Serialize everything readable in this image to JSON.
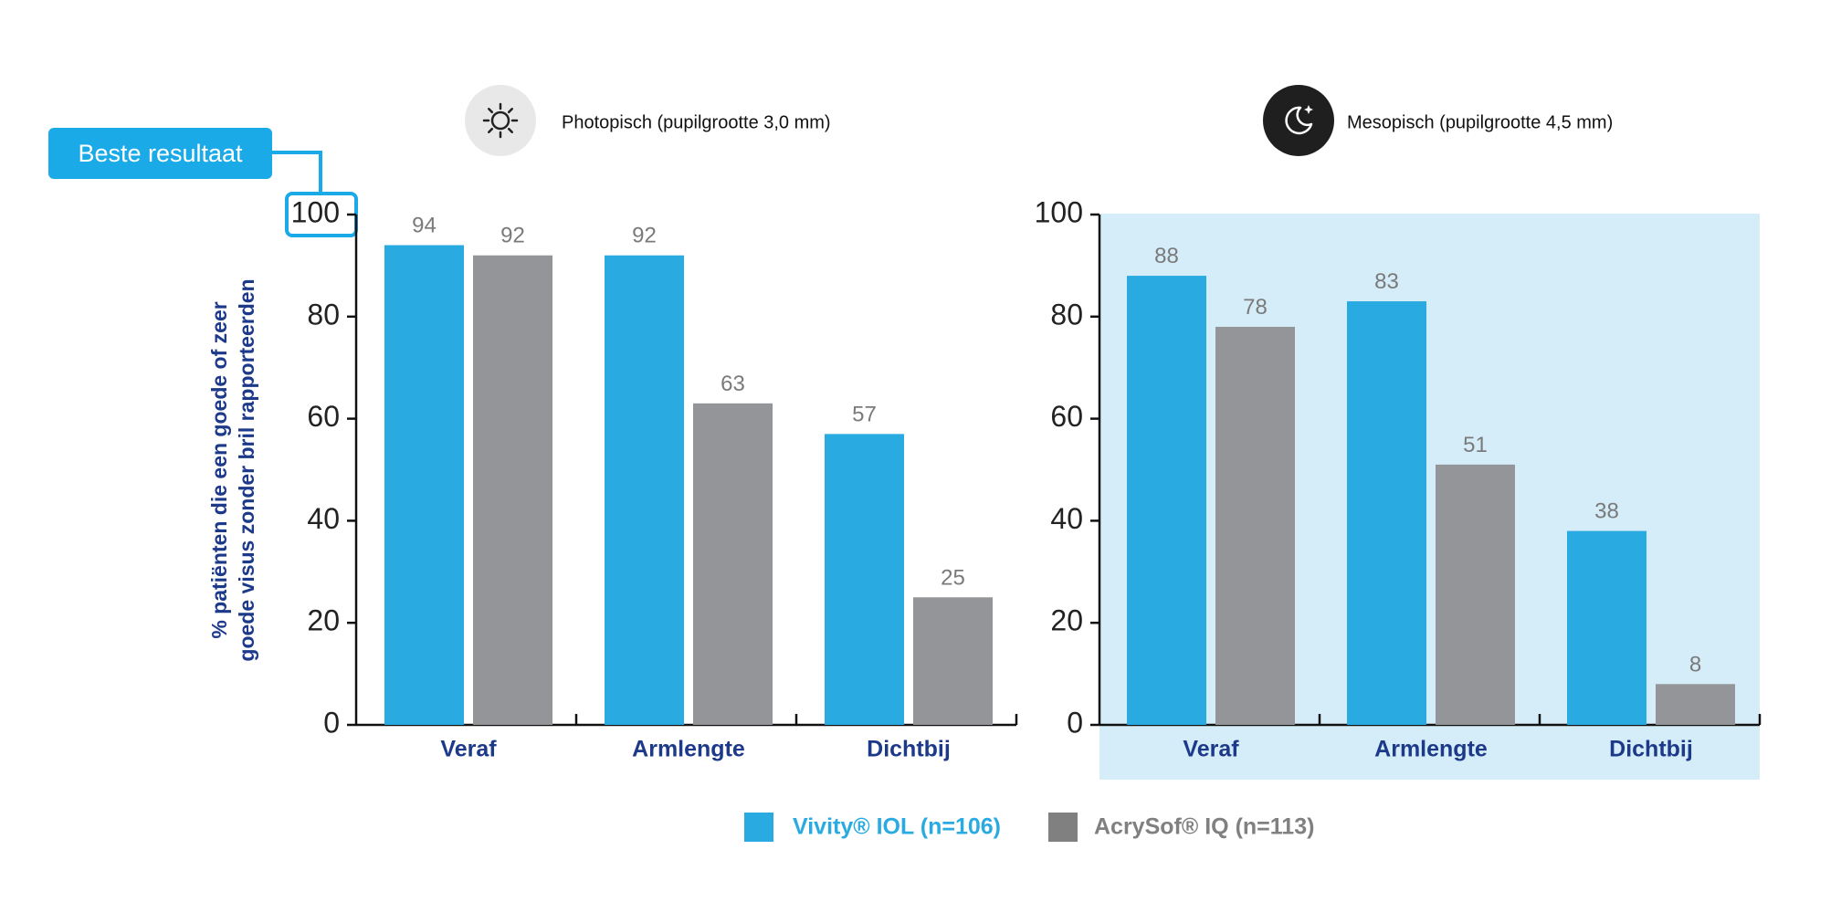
{
  "badge_label": "Beste resultaat",
  "y_axis_label_line1": "% patiënten die een goede of zeer",
  "y_axis_label_line2": "goede visus zonder bril rapporteerden",
  "icons": {
    "photopic": "sun-icon",
    "mesopic": "moon-icon"
  },
  "colors": {
    "vivity": "#29abe2",
    "acrysof": "#939598",
    "mesopic_bg": "#d5edf8",
    "category_label": "#1d3a8a",
    "value_label": "#7a7a7a",
    "badge": "#1aaae8"
  },
  "legend": [
    {
      "label": "Vivity® IOL (n=106)",
      "color": "#29abe2"
    },
    {
      "label": "AcrySof® IQ (n=113)",
      "color": "#808080"
    }
  ],
  "chart_data": [
    {
      "type": "bar",
      "title": "Photopisch (pupilgrootte 3,0 mm)",
      "categories": [
        "Veraf",
        "Armlengte",
        "Dichtbij"
      ],
      "series": [
        {
          "name": "Vivity® IOL (n=106)",
          "values": [
            94,
            92,
            57
          ]
        },
        {
          "name": "AcrySof® IQ (n=113)",
          "values": [
            92,
            63,
            25
          ]
        }
      ],
      "ylim": [
        0,
        100
      ],
      "yticks": [
        0,
        20,
        40,
        60,
        80,
        100
      ],
      "ylabel": "% patiënten die een goede of zeer goede visus zonder bril rapporteerden",
      "highlight_tick": 100,
      "grid": false
    },
    {
      "type": "bar",
      "title": "Mesopisch (pupilgrootte 4,5 mm)",
      "categories": [
        "Veraf",
        "Armlengte",
        "Dichtbij"
      ],
      "series": [
        {
          "name": "Vivity® IOL (n=106)",
          "values": [
            88,
            83,
            38
          ]
        },
        {
          "name": "AcrySof® IQ (n=113)",
          "values": [
            78,
            51,
            8
          ]
        }
      ],
      "ylim": [
        0,
        100
      ],
      "yticks": [
        0,
        20,
        40,
        60,
        80,
        100
      ],
      "grid": false
    }
  ]
}
